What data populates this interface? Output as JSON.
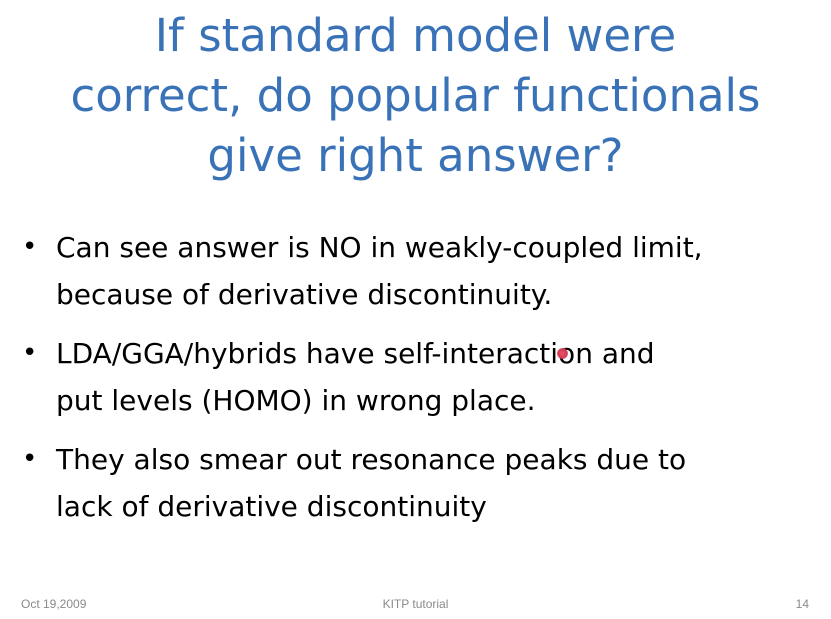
{
  "slide": {
    "title_lines": [
      "If standard model were",
      "correct, do popular functionals",
      "give right answer?"
    ],
    "bullet_glyph": "•",
    "bullets": [
      {
        "lines": [
          "Can see answer is NO in weakly-coupled limit,",
          "because of derivative discontinuity."
        ]
      },
      {
        "lines": [
          "LDA/GGA/hybrids have self-interaction and",
          "put levels (HOMO) in wrong place."
        ]
      },
      {
        "lines": [
          "They also smear out resonance peaks due to",
          "lack of derivative discontinuity"
        ]
      }
    ],
    "footer": {
      "date": "Oct 19,2009",
      "center": "KITP tutorial",
      "page": "14"
    }
  },
  "colors": {
    "title": "#3a72b8",
    "body_text": "#000000",
    "footer_text": "#8a8a8a",
    "pointer": "#d23a52"
  }
}
